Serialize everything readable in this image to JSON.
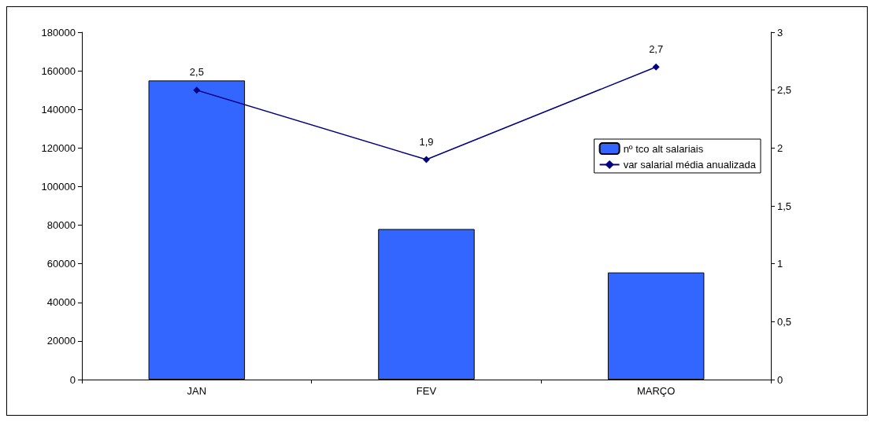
{
  "chart_data": {
    "type": "bar",
    "categories": [
      "JAN",
      "FEV",
      "MARÇO"
    ],
    "series": [
      {
        "name": "nº tco alt salariais",
        "color": "#3366ff",
        "values": [
          155000,
          78000,
          55500
        ]
      },
      {
        "name": "var salarial média anualizada",
        "type": "line",
        "axis": "y2",
        "color": "#000080",
        "marker": "diamond",
        "values": [
          2.5,
          1.9,
          2.7
        ],
        "value_labels": [
          "2,5",
          "1,9",
          "2,7"
        ]
      }
    ],
    "ylim": [
      0,
      180000
    ],
    "yticks": [
      0,
      20000,
      40000,
      60000,
      80000,
      100000,
      120000,
      140000,
      160000,
      180000
    ],
    "y2lim": [
      0,
      3
    ],
    "y2ticks": [
      0,
      {
        "value": 0.5,
        "label": "0,5"
      },
      1,
      {
        "value": 1.5,
        "label": "1,5"
      },
      2,
      {
        "value": 2.5,
        "label": "2,5"
      },
      3
    ],
    "grid": false,
    "legend": "right"
  }
}
